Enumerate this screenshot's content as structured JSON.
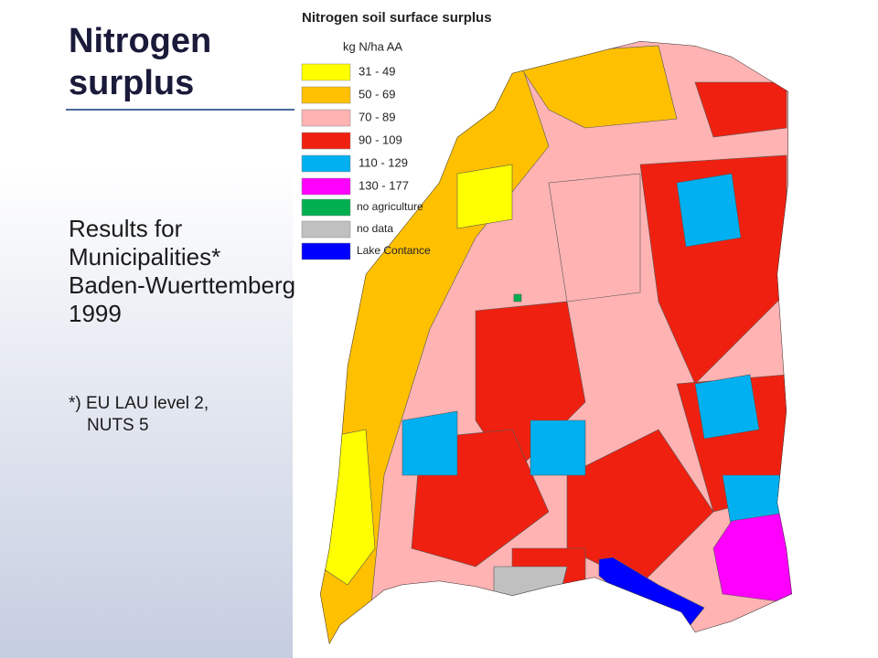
{
  "slide": {
    "title": "Nitrogen surplus",
    "body": [
      "Results for",
      "Municipalities*",
      "Baden-Wuerttemberg",
      "1999"
    ],
    "footnote": [
      "*) EU LAU level 2,",
      "NUTS 5"
    ]
  },
  "legend": {
    "title": "Nitrogen soil surface surplus",
    "unit": "kg N/ha AA",
    "items": [
      {
        "label": "31 -   49",
        "color": "#ffff00"
      },
      {
        "label": "50 -   69",
        "color": "#ffc000"
      },
      {
        "label": "70 -   89",
        "color": "#ffb3b3"
      },
      {
        "label": "90 - 109",
        "color": "#f02010"
      },
      {
        "label": "110 - 129",
        "color": "#00b0f0"
      },
      {
        "label": "130 - 177",
        "color": "#ff00ff"
      },
      {
        "label": "no agriculture",
        "color": "#00b050"
      },
      {
        "label": "no data",
        "color": "#c0c0c0"
      },
      {
        "label": "Lake Contance",
        "color": "#0000ff"
      }
    ]
  }
}
